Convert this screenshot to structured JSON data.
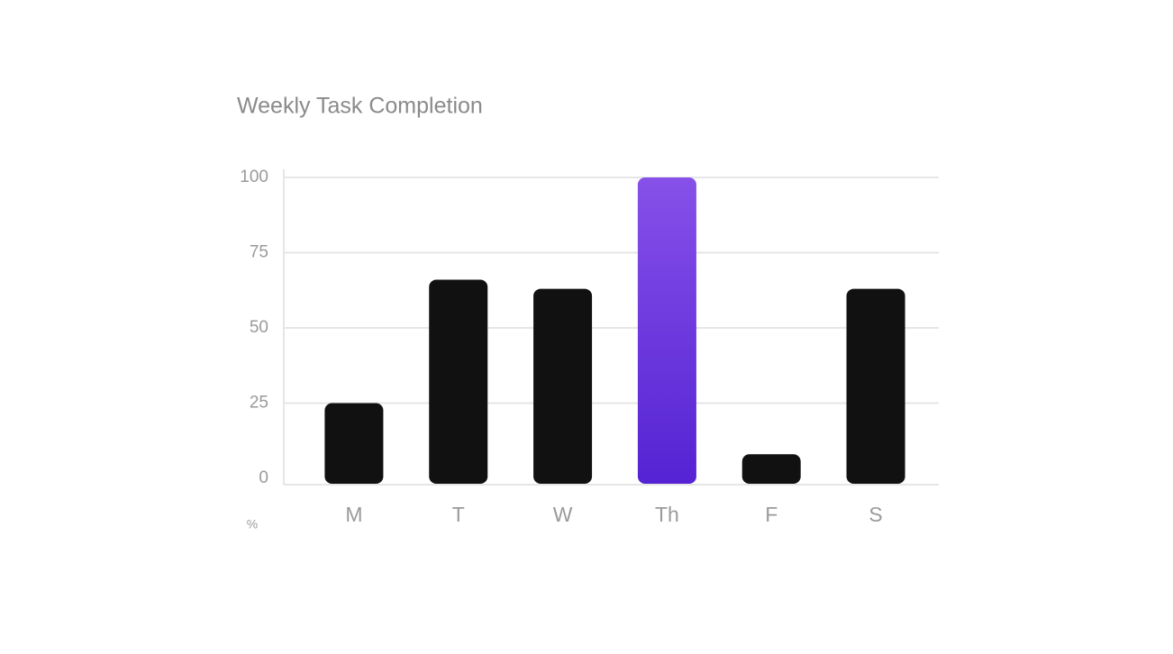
{
  "chart_data": {
    "type": "bar",
    "title": "Weekly Task Completion",
    "y_unit": "%",
    "categories": [
      "M",
      "T",
      "W",
      "Th",
      "F",
      "S"
    ],
    "values": [
      25,
      66,
      63,
      100,
      8,
      63
    ],
    "colors": [
      [
        "#111111",
        "#111111"
      ],
      [
        "#111111",
        "#111111"
      ],
      [
        "#111111",
        "#111111"
      ],
      [
        "#8650e9",
        "#5523d3"
      ],
      [
        "#111111",
        "#111111"
      ],
      [
        "#111111",
        "#111111"
      ]
    ],
    "ylim": [
      0,
      100
    ],
    "yticks": [
      0,
      25,
      50,
      75,
      100
    ],
    "grid": true
  }
}
